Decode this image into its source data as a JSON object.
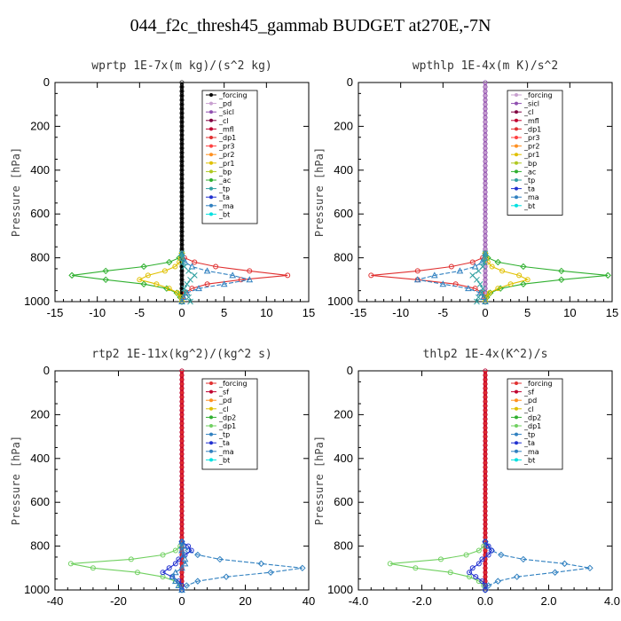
{
  "title": "044_f2c_thresh45_gammab  BUDGET at270E,-7N",
  "chart_data": [
    {
      "type": "line",
      "title": "wprtp   1E-7x(m kg)/(s^2 kg)",
      "ylabel": "Pressure [hPa]",
      "xlim": [
        -15,
        15
      ],
      "xticks": [
        "-15",
        "-10",
        "-5",
        "0",
        "5",
        "10",
        "15"
      ],
      "ylim": [
        0,
        1000
      ],
      "yticks": [
        "0",
        "200",
        "400",
        "600",
        "800",
        "1000"
      ],
      "legend": [
        "_forcing",
        "_pd",
        "_sicl",
        "_cl",
        "_mfl",
        "_dp1",
        "_pr3",
        "_pr2",
        "_pr1",
        "_bp",
        "_ac",
        "_tp",
        "_ta",
        "_ma",
        "_bt"
      ],
      "legend_colors": [
        "#000000",
        "#c8a0d0",
        "#9050b0",
        "#800040",
        "#c00030",
        "#e03030",
        "#ff4040",
        "#ff9020",
        "#e0c000",
        "#b0c820",
        "#30b030",
        "#30a0a0",
        "#2030d0",
        "#3080c0",
        "#00e0e0"
      ],
      "pressure": [
        780,
        800,
        820,
        840,
        860,
        880,
        900,
        920,
        940,
        960,
        980,
        1000
      ],
      "series": [
        {
          "name": "_dp1",
          "values": [
            0,
            0.3,
            1.5,
            4,
            8,
            12.5,
            7,
            3,
            1.2,
            0.4,
            0.1,
            0
          ]
        },
        {
          "name": "_ac",
          "values": [
            0,
            -0.3,
            -1.5,
            -4.5,
            -9,
            -13,
            -9,
            -4.5,
            -1.8,
            -0.6,
            -0.2,
            0
          ]
        },
        {
          "name": "_pr1",
          "values": [
            0,
            -0.1,
            -0.3,
            -0.8,
            -2,
            -4,
            -5,
            -3,
            -1.5,
            -0.5,
            -0.1,
            0
          ]
        },
        {
          "name": "_ma",
          "values": [
            0,
            0.1,
            0.4,
            1.2,
            3,
            6,
            8,
            5,
            2,
            0.6,
            0.2,
            0
          ]
        },
        {
          "name": "_tp",
          "values": [
            0,
            0,
            0.1,
            0.3,
            0.8,
            1.5,
            1,
            0.6,
            0.3,
            0.4,
            0.8,
            1
          ]
        }
      ]
    },
    {
      "type": "line",
      "title": "wpthlp   1E-4x(m K)/s^2",
      "ylabel": "Pressure [hPa]",
      "xlim": [
        -15,
        15
      ],
      "xticks": [
        "-15",
        "-10",
        "-5",
        "0",
        "5",
        "10",
        "15"
      ],
      "ylim": [
        0,
        1000
      ],
      "yticks": [
        "0",
        "200",
        "400",
        "600",
        "800",
        "1000"
      ],
      "legend": [
        "_forcing",
        "_sicl",
        "_cl",
        "_mfl",
        "_dp1",
        "_pr3",
        "_pr2",
        "_pr1",
        "_bp",
        "_ac",
        "_tp",
        "_ta",
        "_ma",
        "_bt"
      ],
      "legend_colors": [
        "#c8a0d0",
        "#9050b0",
        "#800040",
        "#c00030",
        "#e03030",
        "#ff4040",
        "#ff9020",
        "#e0c000",
        "#b0c820",
        "#30b030",
        "#30a0a0",
        "#2030d0",
        "#3080c0",
        "#00e0e0"
      ],
      "pressure": [
        780,
        800,
        820,
        840,
        860,
        880,
        900,
        920,
        940,
        960,
        980,
        1000
      ],
      "series": [
        {
          "name": "_dp1",
          "values": [
            0,
            -0.3,
            -1.5,
            -4,
            -8,
            -13.5,
            -8,
            -3.5,
            -1.2,
            -0.4,
            -0.1,
            0
          ]
        },
        {
          "name": "_ac",
          "values": [
            0,
            0.3,
            1.5,
            4.5,
            9,
            14.5,
            9,
            4.5,
            1.8,
            0.6,
            0.2,
            0
          ]
        },
        {
          "name": "_pr1",
          "values": [
            0,
            0.1,
            0.3,
            0.8,
            2,
            4,
            5,
            3,
            1.5,
            0.5,
            0.1,
            0
          ]
        },
        {
          "name": "_ma",
          "values": [
            0,
            -0.1,
            -0.4,
            -1.2,
            -3,
            -6,
            -8,
            -5,
            -2,
            -0.6,
            -0.2,
            0
          ]
        },
        {
          "name": "_tp",
          "values": [
            0,
            0,
            -0.1,
            -0.3,
            -0.8,
            -1.5,
            -1,
            -0.6,
            -0.3,
            -0.4,
            -0.8,
            -1
          ]
        }
      ]
    },
    {
      "type": "line",
      "title": "rtp2   1E-11x(kg^2)/(kg^2 s)",
      "ylabel": "Pressure [hPa]",
      "xlim": [
        -40,
        40
      ],
      "xticks": [
        "-40",
        "-20",
        "0",
        "20",
        "40"
      ],
      "ylim": [
        0,
        1000
      ],
      "yticks": [
        "0",
        "200",
        "400",
        "600",
        "800",
        "1000"
      ],
      "legend": [
        "_forcing",
        "_sf",
        "_pd",
        "_cl",
        "_dp2",
        "_dp1",
        "_tp",
        "_ta",
        "_ma",
        "_bt"
      ],
      "legend_colors": [
        "#e03030",
        "#c00030",
        "#ff9020",
        "#e0c000",
        "#30b030",
        "#70d060",
        "#3080c0",
        "#2030d0",
        "#3080c0",
        "#00e0e0"
      ],
      "pressure": [
        780,
        800,
        820,
        840,
        860,
        880,
        900,
        920,
        940,
        960,
        980,
        1000
      ],
      "series": [
        {
          "name": "_dp1",
          "values": [
            0,
            -0.5,
            -2,
            -6,
            -16,
            -35,
            -28,
            -14,
            -6,
            -2,
            -0.5,
            0
          ]
        },
        {
          "name": "_ma",
          "values": [
            0,
            0.5,
            2,
            5,
            12,
            25,
            38,
            28,
            14,
            5,
            1.5,
            0
          ]
        },
        {
          "name": "_ta",
          "values": [
            0,
            2,
            3,
            1,
            -1,
            -2,
            -4,
            -6,
            -3,
            -1,
            0,
            0
          ]
        },
        {
          "name": "_tp",
          "values": [
            0,
            0,
            0,
            0.5,
            1,
            1,
            0,
            -2,
            -3,
            -2,
            -1,
            0
          ]
        }
      ]
    },
    {
      "type": "line",
      "title": "thlp2   1E-4x(K^2)/s",
      "ylabel": "Pressure [hPa]",
      "xlim": [
        -4.0,
        4.0
      ],
      "xticks": [
        "-4.0",
        "-2.0",
        "0.0",
        "2.0",
        "4.0"
      ],
      "ylim": [
        0,
        1000
      ],
      "yticks": [
        "0",
        "200",
        "400",
        "600",
        "800",
        "1000"
      ],
      "legend": [
        "_forcing",
        "_sf",
        "_pd",
        "_cl",
        "_dp2",
        "_dp1",
        "_tp",
        "_ta",
        "_ma",
        "_bt"
      ],
      "legend_colors": [
        "#e03030",
        "#c00030",
        "#ff9020",
        "#e0c000",
        "#30b030",
        "#70d060",
        "#3080c0",
        "#2030d0",
        "#3080c0",
        "#00e0e0"
      ],
      "pressure": [
        780,
        800,
        820,
        840,
        860,
        880,
        900,
        920,
        940,
        960,
        980,
        1000
      ],
      "series": [
        {
          "name": "_dp1",
          "values": [
            0,
            -0.05,
            -0.2,
            -0.6,
            -1.4,
            -3.0,
            -2.2,
            -1.1,
            -0.5,
            -0.2,
            -0.05,
            0
          ]
        },
        {
          "name": "_ma",
          "values": [
            0,
            0.05,
            0.2,
            0.5,
            1.2,
            2.5,
            3.3,
            2.2,
            1.0,
            0.4,
            0.1,
            0
          ]
        },
        {
          "name": "_ta",
          "values": [
            0,
            0.1,
            0.2,
            0.1,
            -0.1,
            -0.2,
            -0.4,
            -0.5,
            -0.3,
            -0.1,
            0,
            0
          ]
        }
      ]
    }
  ]
}
